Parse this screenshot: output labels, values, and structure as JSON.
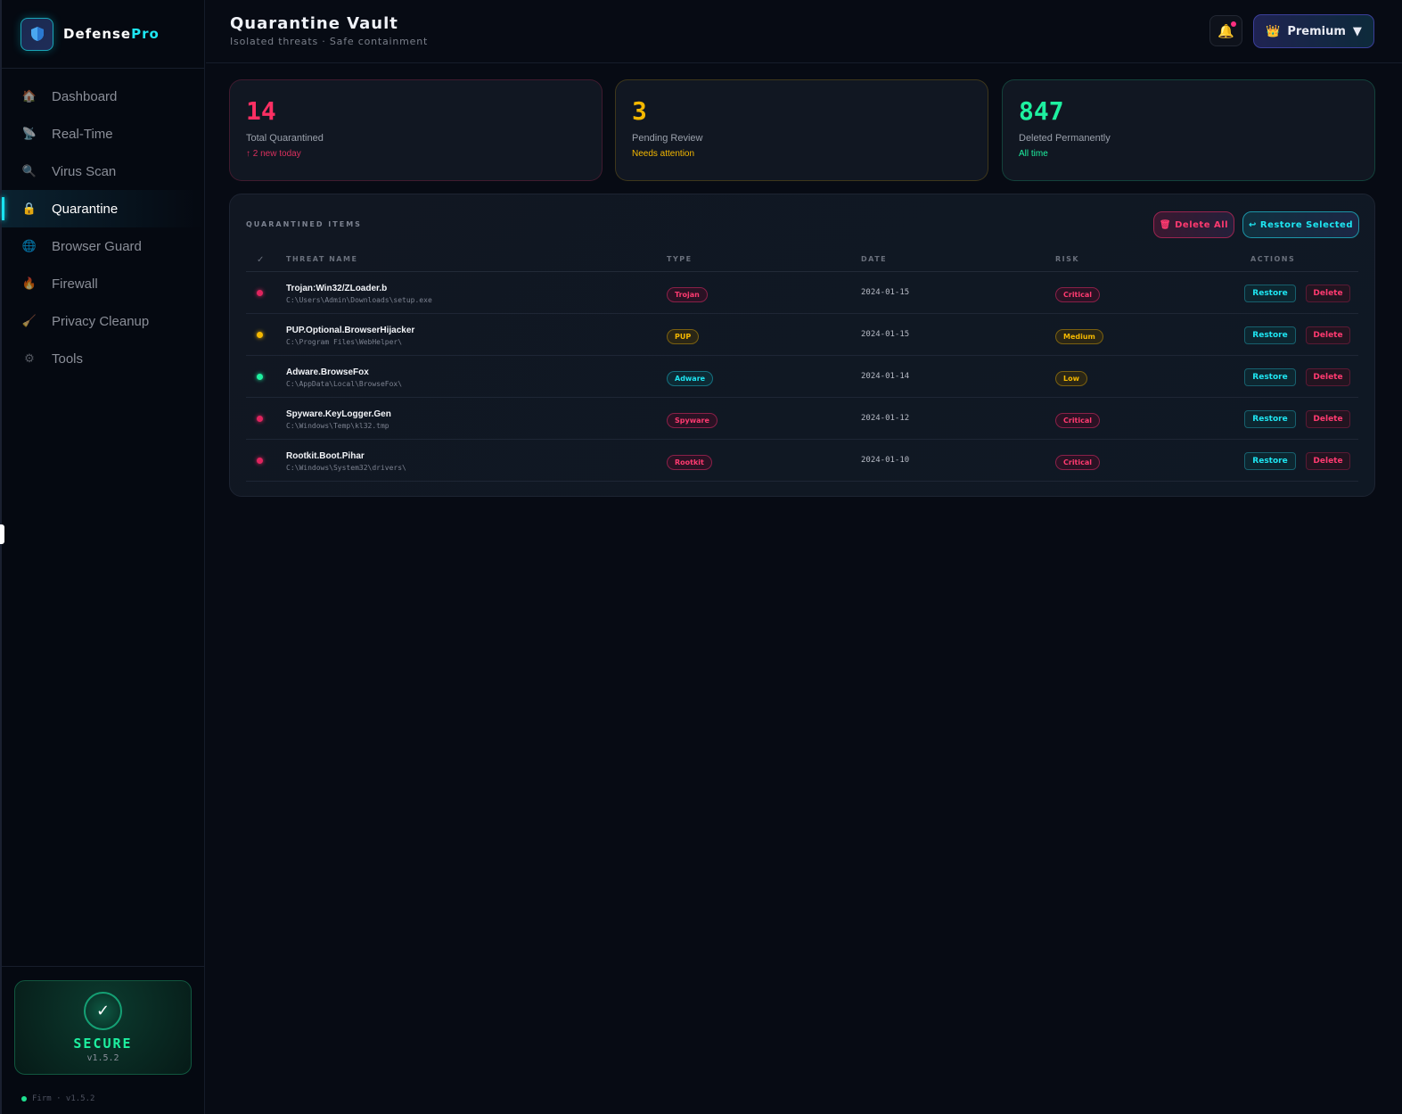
{
  "app": {
    "name_a": "Defense",
    "name_b": "Pro"
  },
  "sidebar": {
    "items": [
      {
        "label": "Dashboard",
        "icon": "🏠",
        "icon_name": "house-icon"
      },
      {
        "label": "Real-Time",
        "icon": "📡",
        "icon_name": "satellite-icon"
      },
      {
        "label": "Virus Scan",
        "icon": "🔍",
        "icon_name": "magnifier-icon"
      },
      {
        "label": "Quarantine",
        "icon": "🔒",
        "icon_name": "lock-icon",
        "active": true
      },
      {
        "label": "Browser Guard",
        "icon": "🌐",
        "icon_name": "globe-icon"
      },
      {
        "label": "Firewall",
        "icon": "🔥",
        "icon_name": "fire-icon"
      },
      {
        "label": "Privacy Cleanup",
        "icon": "🧹",
        "icon_name": "broom-icon"
      },
      {
        "label": "Tools",
        "icon": "⚙",
        "icon_name": "gear-icon"
      }
    ],
    "status": {
      "label": "SECURE",
      "version": "v1.5.2",
      "check": "✓"
    },
    "footer": "Firm · v1.5.2"
  },
  "header": {
    "title": "Quarantine Vault",
    "subtitle": "Isolated threats · Safe containment",
    "premium_label": "Premium",
    "premium_icon": "👑",
    "caret": "▼",
    "bell": "🔔"
  },
  "stats": [
    {
      "value": "14",
      "label": "Total Quarantined",
      "sub": "↑ 2 new today",
      "color": "#ff2f63",
      "sub_color": "#d9305e"
    },
    {
      "value": "3",
      "label": "Pending Review",
      "sub": "Needs attention",
      "color": "#f5b800",
      "sub_color": "#f5b800"
    },
    {
      "value": "847",
      "label": "Deleted Permanently",
      "sub": "All time",
      "color": "#1ef0a0",
      "sub_color": "#1ef0a0"
    }
  ],
  "table": {
    "title": "QUARANTINED ITEMS",
    "delete_all": "Delete All",
    "restore_selected": "Restore Selected",
    "delete_all_icon": "🗑",
    "restore_icon": "↩",
    "columns": {
      "check": "✓",
      "name": "THREAT NAME",
      "type": "TYPE",
      "date": "DATE",
      "risk": "RISK",
      "actions": "ACTIONS"
    },
    "restore_label": "Restore",
    "delete_label": "Delete",
    "rows": [
      {
        "name": "Trojan:Win32/ZLoader.b",
        "path": "C:\\Users\\Admin\\Downloads\\setup.exe",
        "type": "Trojan",
        "date": "2024-01-15",
        "risk": "Critical",
        "dot": "#e0245e"
      },
      {
        "name": "PUP.Optional.BrowserHijacker",
        "path": "C:\\Program Files\\WebHelper\\",
        "type": "PUP",
        "date": "2024-01-15",
        "risk": "Medium",
        "dot": "#f5b800"
      },
      {
        "name": "Adware.BrowseFox",
        "path": "C:\\AppData\\Local\\BrowseFox\\",
        "type": "Adware",
        "date": "2024-01-14",
        "risk": "Low",
        "dot": "#1ef0a0"
      },
      {
        "name": "Spyware.KeyLogger.Gen",
        "path": "C:\\Windows\\Temp\\kl32.tmp",
        "type": "Spyware",
        "date": "2024-01-12",
        "risk": "Critical",
        "dot": "#e0245e"
      },
      {
        "name": "Rootkit.Boot.Pihar",
        "path": "C:\\Windows\\System32\\drivers\\",
        "type": "Rootkit",
        "date": "2024-01-10",
        "risk": "Critical",
        "dot": "#e0245e"
      }
    ]
  }
}
